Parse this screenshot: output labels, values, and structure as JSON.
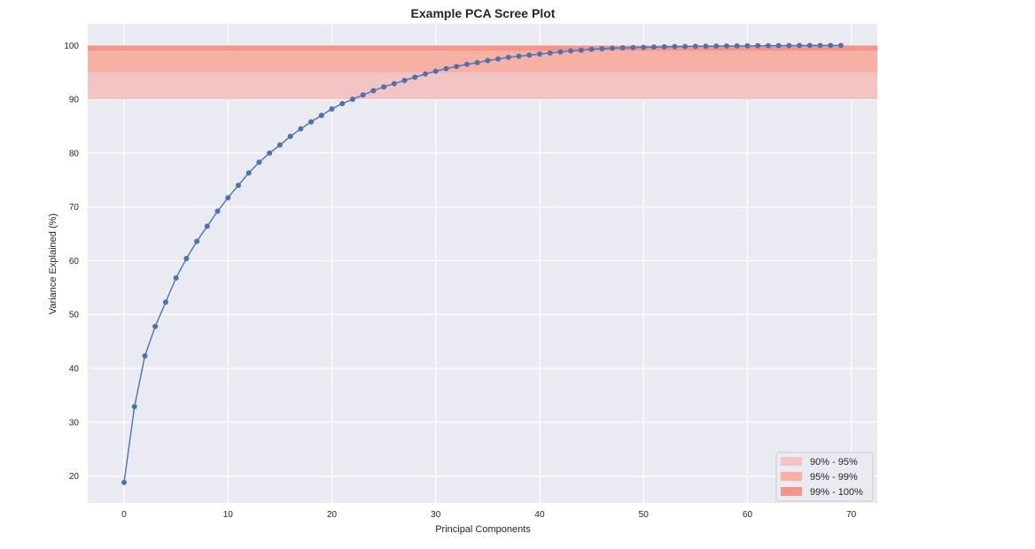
{
  "chart_data": {
    "type": "line",
    "title": "Example PCA Scree Plot",
    "xlabel": "Principal Components",
    "ylabel": "Variance Explained (%)",
    "xlim": [
      -3.5,
      72.5
    ],
    "ylim": [
      15,
      104
    ],
    "x_ticks": [
      0,
      10,
      20,
      30,
      40,
      50,
      60,
      70
    ],
    "y_ticks": [
      20,
      30,
      40,
      50,
      60,
      70,
      80,
      90,
      100
    ],
    "grid": true,
    "legend_position": "bottom-right",
    "bands": [
      {
        "label": "90% - 95%",
        "y0": 90,
        "y1": 95,
        "color": "#f2c4c4"
      },
      {
        "label": "95% - 99%",
        "y0": 95,
        "y1": 99,
        "color": "#f7b0a4"
      },
      {
        "label": "99% - 100%",
        "y0": 99,
        "y1": 100,
        "color": "#f5958a"
      }
    ],
    "series": [
      {
        "color": "#4c72b0",
        "x": [
          0,
          1,
          2,
          3,
          4,
          5,
          6,
          7,
          8,
          9,
          10,
          11,
          12,
          13,
          14,
          15,
          16,
          17,
          18,
          19,
          20,
          21,
          22,
          23,
          24,
          25,
          26,
          27,
          28,
          29,
          30,
          31,
          32,
          33,
          34,
          35,
          36,
          37,
          38,
          39,
          40,
          41,
          42,
          43,
          44,
          45,
          46,
          47,
          48,
          49,
          50,
          51,
          52,
          53,
          54,
          55,
          56,
          57,
          58,
          59,
          60,
          61,
          62,
          63,
          64,
          65,
          66,
          67,
          68,
          69
        ],
        "values": [
          18.8,
          32.9,
          42.3,
          47.8,
          52.3,
          56.8,
          60.4,
          63.6,
          66.4,
          69.2,
          71.7,
          74.0,
          76.3,
          78.3,
          80.0,
          81.5,
          83.1,
          84.5,
          85.8,
          87.0,
          88.2,
          89.2,
          90.0,
          90.8,
          91.6,
          92.3,
          92.9,
          93.5,
          94.1,
          94.7,
          95.2,
          95.7,
          96.1,
          96.5,
          96.8,
          97.2,
          97.5,
          97.8,
          98.0,
          98.2,
          98.4,
          98.6,
          98.8,
          99.0,
          99.1,
          99.3,
          99.4,
          99.5,
          99.55,
          99.6,
          99.65,
          99.7,
          99.74,
          99.78,
          99.8,
          99.83,
          99.85,
          99.87,
          99.89,
          99.9,
          99.92,
          99.94,
          99.95,
          99.96,
          99.97,
          99.98,
          99.99,
          99.99,
          100.0,
          100.0
        ]
      }
    ]
  }
}
